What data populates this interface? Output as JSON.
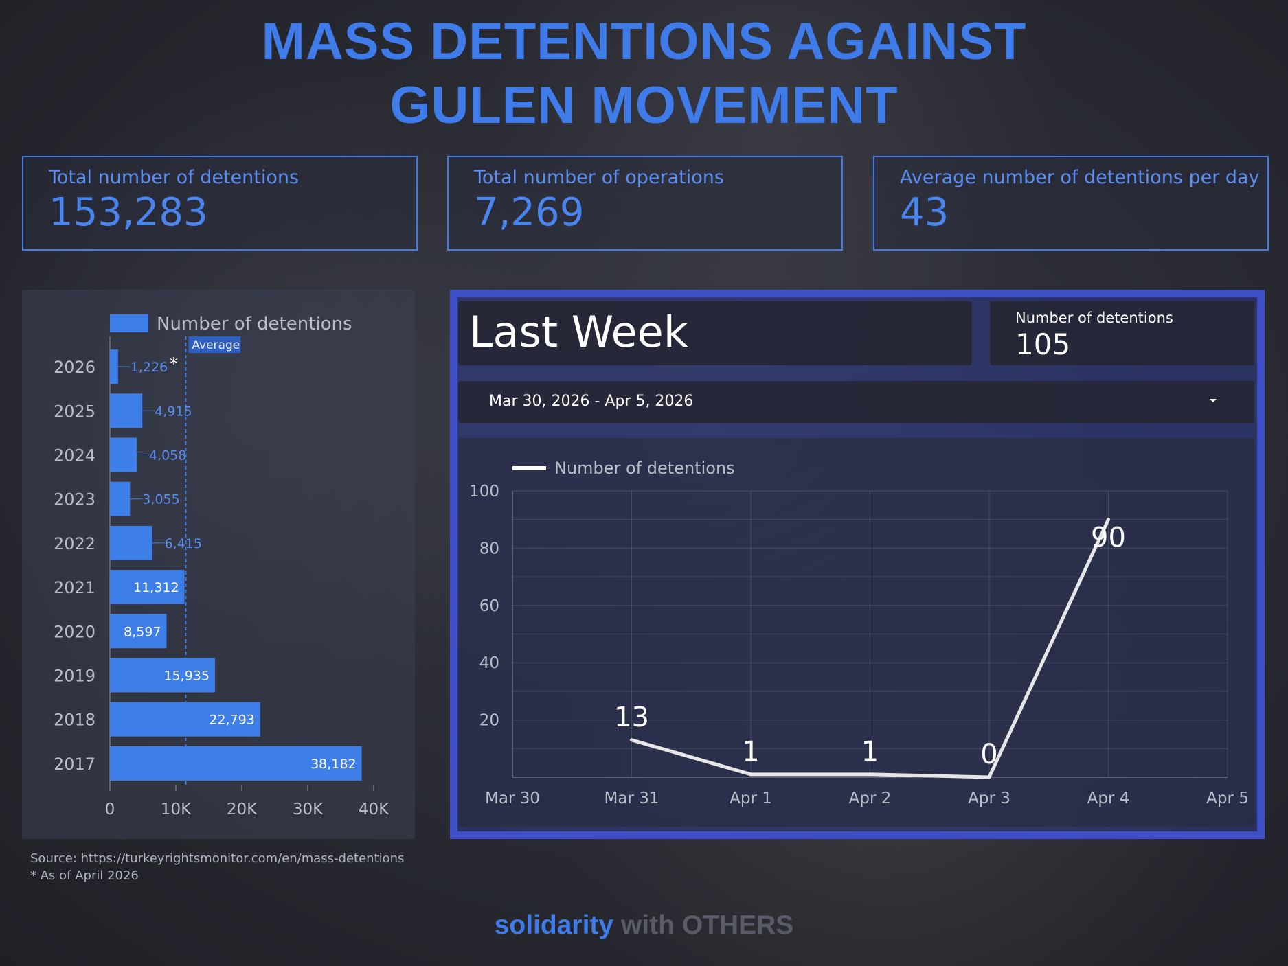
{
  "title": {
    "line1": "MASS DETENTIONS AGAINST",
    "line2": "GULEN MOVEMENT"
  },
  "kpis": [
    {
      "label": "Total number of detentions",
      "value": "153,283"
    },
    {
      "label": "Total number of operations",
      "value": "7,269"
    },
    {
      "label": "Average number of detentions per day",
      "value": "43"
    }
  ],
  "last_week": {
    "title": "Last Week",
    "count_label": "Number of detentions",
    "count_value": "105",
    "date_range": "Mar 30, 2026 - Apr 5, 2026"
  },
  "source_text": "Source: https://turkeyrightsmonitor.com/en/mass-detentions",
  "footnote": "* As of April 2026",
  "brand": {
    "part1": "solidarity",
    "part2": " with OTHERS"
  },
  "colors": {
    "accent": "#3f7be9",
    "bar": "#3e7ee8",
    "line": "#e6e6e6",
    "panel_border": "#3f4fc7"
  },
  "chart_data": [
    {
      "type": "bar",
      "orientation": "horizontal",
      "legend": "Number of detentions",
      "legend_position": "top",
      "categories": [
        "2026",
        "2025",
        "2024",
        "2023",
        "2022",
        "2021",
        "2020",
        "2019",
        "2018",
        "2017"
      ],
      "values": [
        1226,
        4915,
        4058,
        3055,
        6415,
        11312,
        8597,
        15935,
        22793,
        38182
      ],
      "value_labels": [
        "1,226",
        "4,915",
        "4,058",
        "3,055",
        "6,415",
        "11,312",
        "8,597",
        "15,935",
        "22,793",
        "38,182"
      ],
      "annotations": [
        {
          "category": "2026",
          "text": "*"
        }
      ],
      "reference_line": {
        "label": "Average",
        "value": 11500
      },
      "xlim": [
        0,
        40000
      ],
      "xticks": [
        "0",
        "10K",
        "20K",
        "30K",
        "40K"
      ],
      "grid": false
    },
    {
      "type": "line",
      "legend": "Number of detentions",
      "legend_position": "top-left",
      "x": [
        "Mar 30",
        "Mar 31",
        "Apr 1",
        "Apr 2",
        "Apr 3",
        "Apr 4",
        "Apr 5"
      ],
      "values": [
        null,
        13,
        1,
        1,
        0,
        90,
        null
      ],
      "value_labels": [
        "",
        "13",
        "1",
        "1",
        "0",
        "90",
        ""
      ],
      "ylim": [
        0,
        100
      ],
      "yticks": [
        "20",
        "40",
        "60",
        "80",
        "100"
      ],
      "grid": true
    }
  ]
}
